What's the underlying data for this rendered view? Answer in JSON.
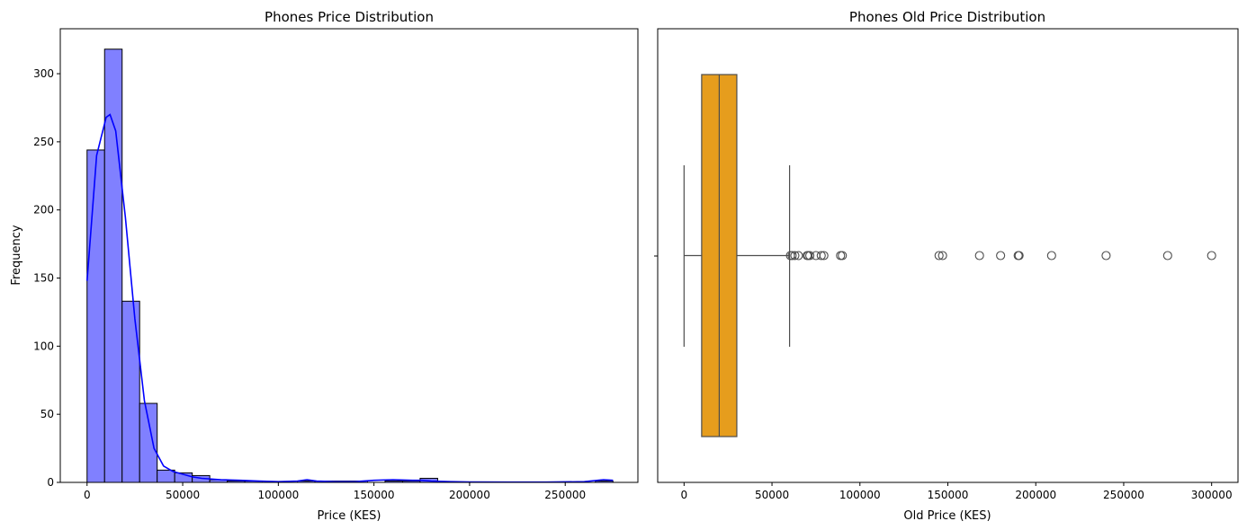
{
  "chart_data": [
    {
      "type": "bar",
      "subtype": "histogram-with-kde",
      "title": "Phones Price Distribution",
      "xlabel": "Price (KES)",
      "ylabel": "Frequency",
      "xlim": [
        -14000,
        288000
      ],
      "ylim": [
        0,
        333
      ],
      "xticks": [
        0,
        50000,
        100000,
        150000,
        200000,
        250000
      ],
      "yticks": [
        0,
        50,
        100,
        150,
        200,
        250,
        300
      ],
      "bin_width": 9165,
      "bin_start": 0,
      "values": [
        244,
        318,
        133,
        58,
        9,
        7,
        5,
        2,
        1,
        1,
        0,
        0,
        1,
        1,
        1,
        1,
        0,
        1,
        1,
        3,
        0,
        0,
        0,
        0,
        0,
        0,
        0,
        0,
        0,
        1
      ],
      "kde": {
        "x": [
          0,
          5000,
          10000,
          12000,
          15000,
          20000,
          25000,
          30000,
          35000,
          40000,
          45000,
          50000,
          55000,
          60000,
          70000,
          80000,
          90000,
          100000,
          110000,
          115000,
          120000,
          130000,
          140000,
          150000,
          160000,
          170000,
          175000,
          180000,
          190000,
          200000,
          220000,
          240000,
          260000,
          270000,
          275000
        ],
        "y": [
          148,
          240,
          268,
          270,
          258,
          195,
          120,
          60,
          25,
          12,
          8,
          6,
          4,
          3,
          2,
          1.5,
          1,
          0.5,
          1,
          2,
          1,
          0.5,
          0.5,
          1.5,
          2,
          1.5,
          1.5,
          1,
          0.5,
          0.3,
          0.2,
          0.2,
          0.5,
          2,
          1.5
        ]
      },
      "colors": {
        "bar_fill": "#8080ff",
        "bar_edge": "#000000",
        "kde_line": "#0000ff"
      }
    },
    {
      "type": "box",
      "title": "Phones Old Price Distribution",
      "xlabel": "Old Price (KES)",
      "ylabel": "",
      "xlim": [
        -15000,
        315000
      ],
      "xticks": [
        0,
        50000,
        100000,
        150000,
        200000,
        250000,
        300000
      ],
      "whisker_low": 0,
      "q1": 10000,
      "median": 20000,
      "q3": 30000,
      "whisker_high": 60000,
      "outliers": [
        60500,
        61500,
        63000,
        65000,
        70000,
        70500,
        71500,
        75000,
        78000,
        79500,
        89000,
        90000,
        145000,
        147000,
        168000,
        180000,
        190000,
        190500,
        209000,
        240000,
        275000,
        300000
      ],
      "colors": {
        "box_fill": "#e69d1d",
        "lines": "#4d4d4d"
      }
    }
  ]
}
